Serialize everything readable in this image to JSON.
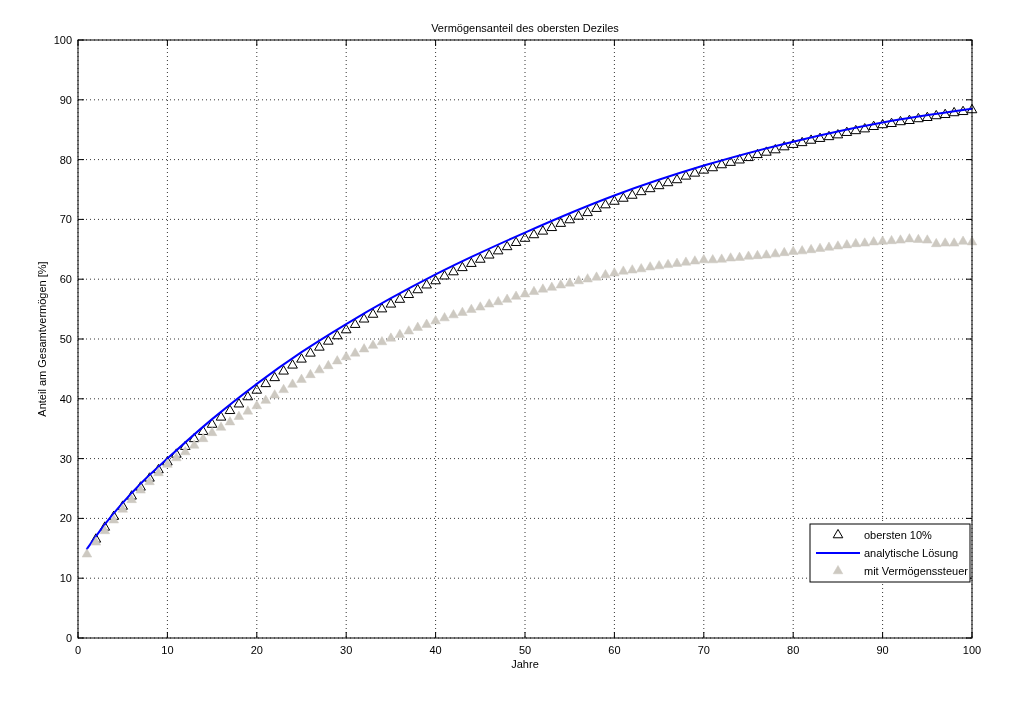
{
  "chart_data": {
    "type": "scatter",
    "title": "Vermögensanteil des obersten Deziles",
    "xlabel": "Jahre",
    "ylabel": "Anteil am Gesamtvermögen [%]",
    "xlim": [
      0,
      100
    ],
    "ylim": [
      0,
      100
    ],
    "xticks": [
      0,
      10,
      20,
      30,
      40,
      50,
      60,
      70,
      80,
      90,
      100
    ],
    "yticks": [
      0,
      10,
      20,
      30,
      40,
      50,
      60,
      70,
      80,
      90,
      100
    ],
    "grid": true,
    "legend": "bottom right",
    "series": [
      {
        "name": "obersten 10%",
        "marker": "triangle",
        "color": "#000000",
        "x": [
          2,
          3,
          4,
          5,
          6,
          7,
          8,
          9,
          10,
          11,
          12,
          13,
          14,
          15,
          16,
          17,
          18,
          19,
          20,
          21,
          22,
          23,
          24,
          25,
          26,
          27,
          28,
          29,
          30,
          31,
          32,
          33,
          34,
          35,
          36,
          37,
          38,
          39,
          40,
          41,
          42,
          43,
          44,
          45,
          46,
          47,
          48,
          49,
          50,
          51,
          52,
          53,
          54,
          55,
          56,
          57,
          58,
          59,
          60,
          61,
          62,
          63,
          64,
          65,
          66,
          67,
          68,
          69,
          70,
          71,
          72,
          73,
          74,
          75,
          76,
          77,
          78,
          79,
          80,
          81,
          82,
          83,
          84,
          85,
          86,
          87,
          88,
          89,
          90,
          91,
          92,
          93,
          94,
          95,
          96,
          97,
          98,
          99,
          100
        ],
        "values": [
          16.5,
          18.5,
          20.3,
          22,
          23.7,
          25.2,
          26.7,
          28.1,
          29.4,
          30.7,
          32,
          33.3,
          34.5,
          35.7,
          36.9,
          38,
          39.1,
          40.3,
          41.4,
          42.5,
          43.5,
          44.6,
          45.6,
          46.6,
          47.6,
          48.6,
          49.6,
          50.5,
          51.5,
          52.4,
          53.3,
          54.1,
          55,
          55.8,
          56.6,
          57.4,
          58.2,
          59,
          59.7,
          60.5,
          61.2,
          61.9,
          62.6,
          63.3,
          64,
          64.7,
          65.4,
          66.1,
          66.8,
          67.4,
          68,
          68.6,
          69.3,
          69.9,
          70.5,
          71.1,
          71.8,
          72.4,
          73,
          73.5,
          74,
          74.6,
          75.1,
          75.6,
          76.1,
          76.6,
          77.2,
          77.7,
          78.2,
          78.6,
          79.1,
          79.5,
          79.9,
          80.3,
          80.8,
          81.2,
          81.6,
          82.1,
          82.5,
          82.8,
          83.2,
          83.5,
          83.8,
          84.1,
          84.5,
          84.8,
          85.1,
          85.5,
          85.8,
          86,
          86.3,
          86.5,
          86.8,
          87,
          87.3,
          87.5,
          87.8,
          88,
          88.3
        ]
      },
      {
        "name": "analytische Lösung",
        "type": "line",
        "line_style": "solid",
        "color": "#0000ff",
        "x": [
          1,
          2,
          3,
          5,
          7,
          10,
          15,
          20,
          25,
          30,
          40,
          50,
          60,
          70,
          80,
          90,
          100
        ],
        "values": [
          14.9,
          17,
          19,
          22.6,
          25.8,
          30,
          36.6,
          42.5,
          47.8,
          52.5,
          60.8,
          67.8,
          74,
          79,
          83,
          86.2,
          88.5
        ]
      },
      {
        "name": "mit Vermögenssteuer",
        "marker": "triangle",
        "color": "#cdc9c1",
        "x": [
          1,
          2,
          3,
          4,
          5,
          6,
          7,
          8,
          9,
          10,
          11,
          12,
          13,
          14,
          15,
          16,
          17,
          18,
          19,
          20,
          21,
          22,
          23,
          24,
          25,
          26,
          27,
          28,
          29,
          30,
          31,
          32,
          33,
          34,
          35,
          36,
          37,
          38,
          39,
          40,
          41,
          42,
          43,
          44,
          45,
          46,
          47,
          48,
          49,
          50,
          51,
          52,
          53,
          54,
          55,
          56,
          57,
          58,
          59,
          60,
          61,
          62,
          63,
          64,
          65,
          66,
          67,
          68,
          69,
          70,
          71,
          72,
          73,
          74,
          75,
          76,
          77,
          78,
          79,
          80,
          81,
          82,
          83,
          84,
          85,
          86,
          87,
          88,
          89,
          90,
          91,
          92,
          93,
          94,
          95,
          96,
          97,
          98,
          99,
          100
        ],
        "values": [
          14,
          16,
          17.9,
          19.7,
          21.5,
          23.1,
          24.7,
          26.1,
          27.6,
          29,
          30.1,
          31.1,
          32.2,
          33.3,
          34.3,
          35.2,
          36.1,
          37,
          37.9,
          38.8,
          39.7,
          40.6,
          41.5,
          42.4,
          43.2,
          44,
          44.8,
          45.5,
          46.3,
          47,
          47.6,
          48.3,
          48.9,
          49.5,
          50.1,
          50.7,
          51.3,
          51.9,
          52.4,
          53,
          53.5,
          54,
          54.4,
          54.9,
          55.3,
          55.8,
          56.2,
          56.6,
          57.1,
          57.5,
          57.9,
          58.3,
          58.6,
          59,
          59.3,
          59.7,
          60,
          60.3,
          60.7,
          61,
          61.3,
          61.5,
          61.7,
          62,
          62.2,
          62.4,
          62.6,
          62.8,
          63,
          63.2,
          63.2,
          63.3,
          63.5,
          63.6,
          63.8,
          63.9,
          64,
          64.2,
          64.4,
          64.6,
          64.7,
          64.9,
          65.1,
          65.3,
          65.5,
          65.7,
          65.9,
          66,
          66.2,
          66.3,
          66.4,
          66.5,
          66.7,
          66.6,
          66.5,
          65.9,
          66,
          66,
          66.3,
          66.2
        ]
      }
    ]
  }
}
